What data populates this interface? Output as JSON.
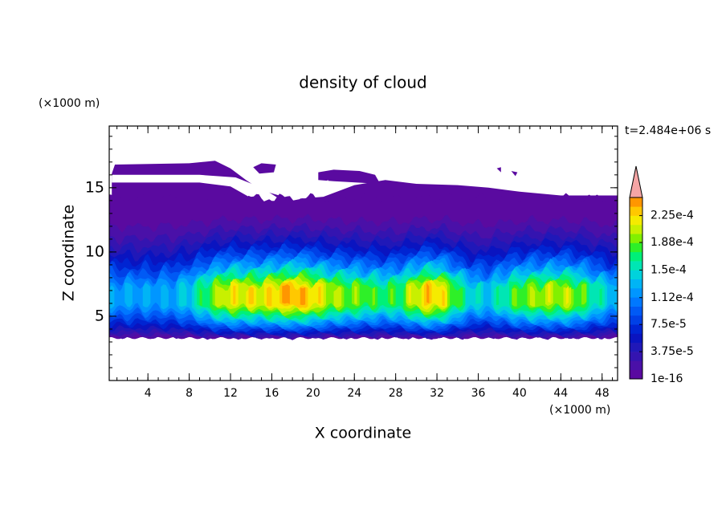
{
  "chart_data": {
    "type": "contour",
    "title": "density of cloud",
    "x_label": "X coordinate",
    "y_label": "Z coordinate",
    "x_unit": "(×1000 m)",
    "y_unit": "(×1000 m)",
    "annotation": "t=2.484e+06 s",
    "xlim": [
      0.25,
      49.5
    ],
    "ylim": [
      0,
      19.8
    ],
    "xticks": [
      4,
      8,
      12,
      16,
      20,
      24,
      28,
      32,
      36,
      40,
      44,
      48
    ],
    "yticks": [
      5,
      10,
      15
    ],
    "colorbar": {
      "lim": [
        1e-16,
        0.00025
      ],
      "ticks": [
        {
          "value": 1e-16,
          "label": "1e-16"
        },
        {
          "value": 3.75e-05,
          "label": "3.75e-5"
        },
        {
          "value": 7.5e-05,
          "label": "7.5e-5"
        },
        {
          "value": 0.000112,
          "label": "1.12e-4"
        },
        {
          "value": 0.00015,
          "label": "1.5e-4"
        },
        {
          "value": 0.000188,
          "label": "1.88e-4"
        },
        {
          "value": 0.000225,
          "label": "2.25e-4"
        }
      ],
      "colors": [
        "#5a0aa0",
        "#4a10a8",
        "#3414b0",
        "#2018b8",
        "#0a14c0",
        "#0024d2",
        "#0040e6",
        "#005af5",
        "#0078ff",
        "#0096ff",
        "#00b4f5",
        "#00d2dc",
        "#00e6b4",
        "#00f078",
        "#2ef028",
        "#82f000",
        "#c8f000",
        "#f5eb00",
        "#ffc800",
        "#ff9600"
      ],
      "extend_color": "#f5a5a5"
    }
  }
}
